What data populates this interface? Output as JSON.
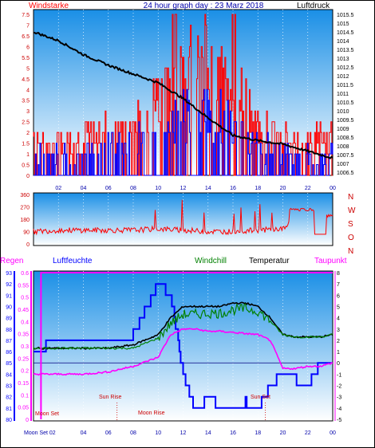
{
  "header": {
    "left_label": "Windstarke",
    "title": "24 hour graph day : 23 Marz 2018",
    "right_label": "Luftdruck"
  },
  "colors": {
    "panel_top": "#1a8fe6",
    "panel_bottom": "#ffffff",
    "wind_bar": "#ff0000",
    "wind_mean": "#0000ff",
    "pressure": "#000000",
    "direction": "#ff0000",
    "humidity": "#0000ff",
    "windchill": "#008000",
    "temperature": "#000000",
    "dewpoint": "#ff00ff",
    "rain": "#ff00ff",
    "astro_label": "#cc0000"
  },
  "hour_ticks": [
    "02",
    "04",
    "06",
    "08",
    "10",
    "12",
    "14",
    "16",
    "18",
    "20",
    "22",
    "00"
  ],
  "wind_axis": {
    "labels": [
      "7.5",
      "7",
      "6.5",
      "6",
      "5.5",
      "5",
      "4.5",
      "4",
      "3.5",
      "3",
      "2.5",
      "2",
      "1.5",
      "1",
      "0.5",
      "0"
    ]
  },
  "pressure_axis": {
    "labels": [
      "1015.5",
      "1015",
      "1014.5",
      "1014",
      "1013.5",
      "1013",
      "1012.5",
      "1012",
      "1011.5",
      "1011",
      "1010.5",
      "1010",
      "1009.5",
      "1009",
      "1008.5",
      "1008",
      "1007.5",
      "1007",
      "1006.5"
    ]
  },
  "dir_axis": {
    "labels": [
      "360",
      "270",
      "180",
      "90",
      "0"
    ],
    "compass": [
      "N",
      "W",
      "S",
      "O",
      "N"
    ]
  },
  "bottom_header": {
    "rain": "Regen",
    "humidity": "Luftfeuchte",
    "windchill": "Windchill",
    "temperature": "Temperatur",
    "dewpoint": "Taupunkt"
  },
  "hum_axis": {
    "labels": [
      "93",
      "92",
      "91",
      "90",
      "89",
      "88",
      "87",
      "86",
      "85",
      "84",
      "83",
      "82",
      "81",
      "80"
    ]
  },
  "rain_axis": {
    "labels": [
      "0.6",
      "0.55",
      "0.5",
      "0.45",
      "0.4",
      "0.35",
      "0.3",
      "0.25",
      "0.2",
      "0.15",
      "0.1",
      "0.05",
      "0"
    ]
  },
  "temp_axis": {
    "labels": [
      "8",
      "7",
      "6",
      "5",
      "4",
      "3",
      "2",
      "1",
      "0",
      "-1",
      "-2",
      "-3",
      "-4",
      "-5"
    ]
  },
  "astro": {
    "moon_set": "Moon Set",
    "sun_rise": "Sun Rise",
    "moon_rise": "Moon Rise",
    "sun_set": "Sun Set"
  },
  "bottom_first_tick": "Moon Set 02",
  "chart_data": [
    {
      "type": "line",
      "title": "24 hour graph day : 23 Marz 2018",
      "x": [
        0,
        2,
        4,
        6,
        8,
        10,
        12,
        14,
        16,
        18,
        20,
        22,
        24
      ],
      "series": [
        {
          "name": "Luftdruck",
          "values": [
            1014.5,
            1014.0,
            1013.2,
            1012.6,
            1012.1,
            1011.6,
            1010.7,
            1009.6,
            1008.6,
            1008.3,
            1008.1,
            1007.7,
            1007.3
          ]
        },
        {
          "name": "Windstarke",
          "values": [
            1.8,
            1.8,
            1.8,
            2.5,
            2.5,
            4.0,
            5.5,
            5.5,
            4.5,
            2.5,
            1.8,
            1.8,
            1.8
          ]
        }
      ],
      "ylim_left": [
        0,
        7.5
      ],
      "ylim_right": [
        1006.5,
        1015.5
      ],
      "xlabel": "",
      "ylabel": "Windstarke"
    },
    {
      "type": "line",
      "x": [
        0,
        2,
        4,
        6,
        8,
        10,
        12,
        14,
        16,
        18,
        20,
        22,
        24
      ],
      "series": [
        {
          "values": [
            90,
            100,
            100,
            100,
            100,
            110,
            100,
            90,
            90,
            100,
            110,
            250,
            200
          ]
        }
      ],
      "ylim": [
        0,
        360
      ]
    },
    {
      "type": "line",
      "x": [
        0,
        2,
        4,
        6,
        8,
        10,
        11,
        12,
        13,
        14,
        15,
        16,
        17,
        18,
        19,
        20,
        21,
        22,
        23,
        24
      ],
      "series": [
        {
          "name": "Luftfeuchte",
          "values": [
            86,
            87,
            87,
            87,
            87.5,
            92,
            91,
            84,
            80.5,
            82,
            81,
            80.5,
            81.5,
            81,
            83,
            84,
            83.5,
            83,
            85,
            85
          ]
        },
        {
          "name": "Temperatur",
          "values": [
            1.3,
            1.3,
            1.3,
            1.3,
            1.6,
            2.5,
            4.0,
            5.0,
            5.0,
            5.0,
            5.0,
            5.3,
            5.3,
            5.0,
            4.0,
            2.5,
            2.3,
            2.3,
            2.3,
            2.5
          ]
        },
        {
          "name": "Windchill",
          "values": [
            1.3,
            1.3,
            1.3,
            1.3,
            1.3,
            2.2,
            3.5,
            4.3,
            4.3,
            4.4,
            4.4,
            4.7,
            4.8,
            4.6,
            3.7,
            2.5,
            2.3,
            2.3,
            2.3,
            2.5
          ]
        },
        {
          "name": "Taupunkt",
          "values": [
            -1.0,
            -1.0,
            -1.0,
            -0.8,
            -0.3,
            0.5,
            2.5,
            3.0,
            3.0,
            2.8,
            2.8,
            2.7,
            2.6,
            2.5,
            2.0,
            -0.5,
            -0.5,
            -0.3,
            -0.3,
            0.0
          ]
        },
        {
          "name": "Regen",
          "values": [
            0.6,
            0.6,
            0.6,
            0.6,
            0.6,
            0.6,
            0.6,
            0.6,
            0.6,
            0.6,
            0.6,
            0.6,
            0.6,
            0.6,
            0.6,
            0.6,
            0.6,
            0.6,
            0.6,
            0.6
          ]
        }
      ],
      "ylim_left": [
        80,
        93
      ],
      "ylim_rain": [
        0,
        0.6
      ],
      "ylim_right": [
        -5,
        8
      ]
    }
  ]
}
